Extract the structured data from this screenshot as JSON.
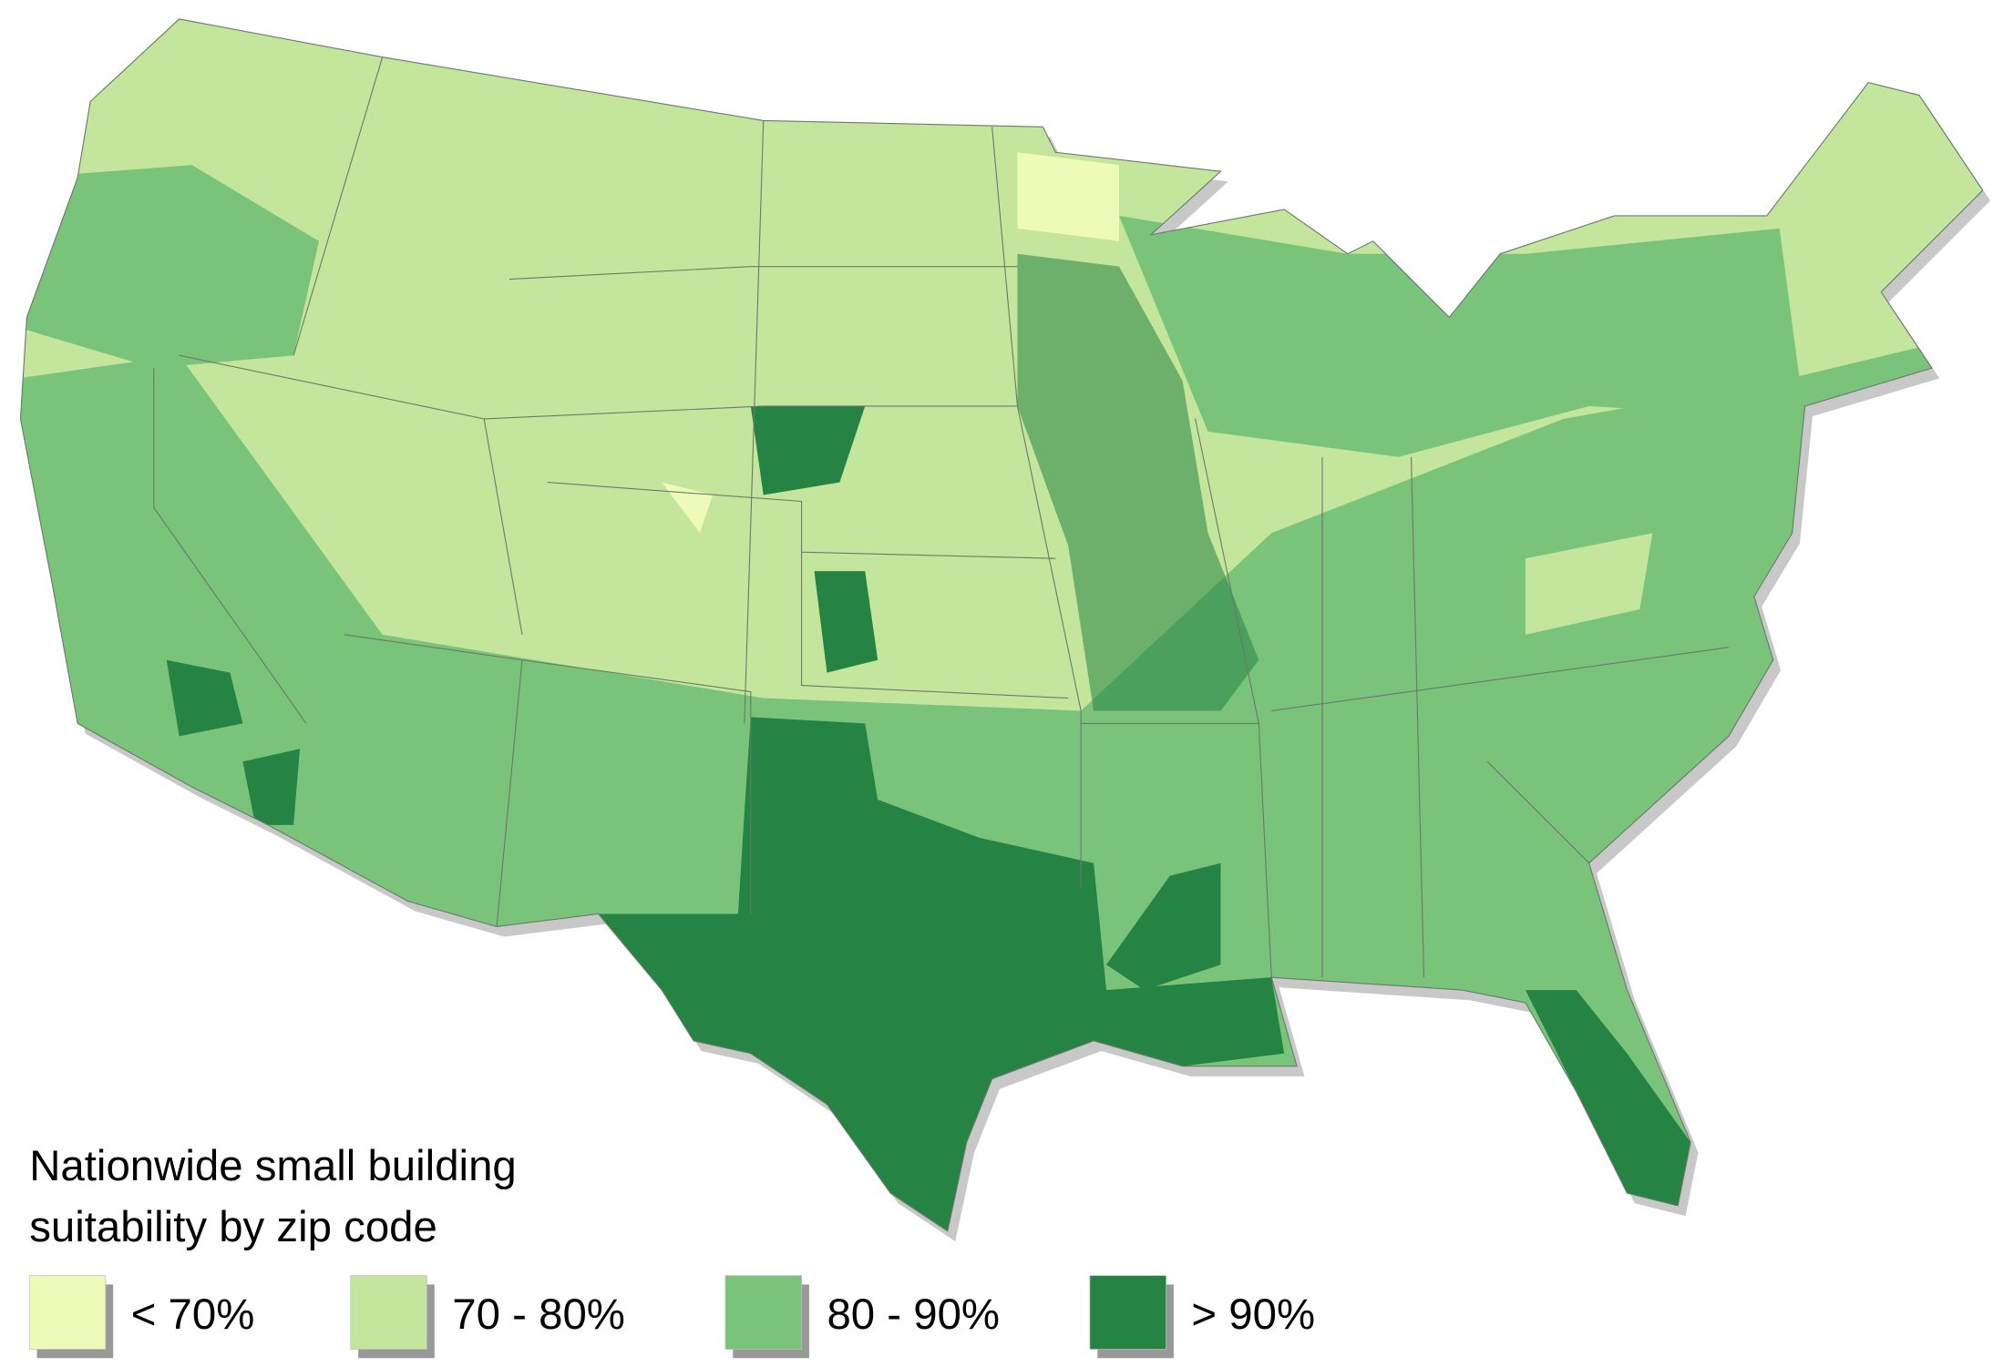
{
  "legend": {
    "title": [
      "Nationwide small building",
      "suitability by zip code"
    ],
    "items": [
      {
        "label": "< 70%",
        "color": "#eefbb8"
      },
      {
        "label": "70 - 80%",
        "color": "#c4e69c"
      },
      {
        "label": "80 - 90%",
        "color": "#79c47a"
      },
      {
        "label": "> 90%",
        "color": "#258443"
      }
    ]
  }
}
